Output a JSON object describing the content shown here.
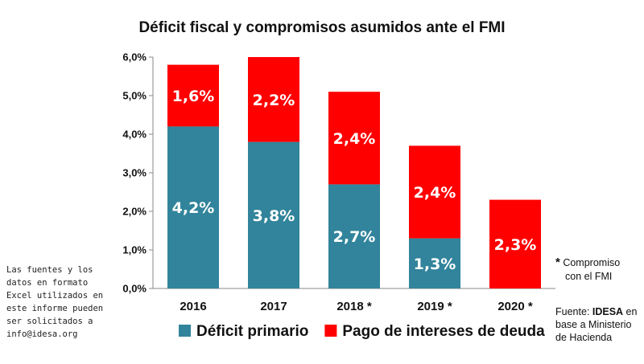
{
  "chart_data": {
    "type": "bar",
    "stacked": true,
    "title": "Déficit fiscal y compromisos asumidos ante el FMI",
    "categories": [
      "2016",
      "2017",
      "2018 *",
      "2019 *",
      "2020 *"
    ],
    "series": [
      {
        "name": "Déficit primario",
        "color": "#31849b",
        "values": [
          4.2,
          3.8,
          2.7,
          1.3,
          0
        ],
        "labels": [
          "4,2%",
          "3,8%",
          "2,7%",
          "1,3%",
          ""
        ]
      },
      {
        "name": "Pago de intereses de deuda",
        "color": "#ff0000",
        "values": [
          1.6,
          2.2,
          2.4,
          2.4,
          2.3
        ],
        "labels": [
          "1,6%",
          "2,2%",
          "2,4%",
          "2,4%",
          "2,3%"
        ]
      }
    ],
    "ylim": [
      0,
      6
    ],
    "yticks": [
      0,
      1,
      2,
      3,
      4,
      5,
      6
    ],
    "ytick_labels": [
      "0,0%",
      "1,0%",
      "2,0%",
      "3,0%",
      "4,0%",
      "5,0%",
      "6,0%"
    ],
    "grid": false,
    "legend_position": "bottom"
  },
  "notes": {
    "left_lines": [
      "Las fuentes y los",
      "datos en formato",
      "Excel utilizados en",
      "este informe pueden",
      "ser solicitados a",
      "info@idesa.org"
    ],
    "star": "*",
    "commitment_line1": "Compromiso",
    "commitment_line2": "con el FMI",
    "source_prefix": "Fuente: ",
    "source_org": "IDESA",
    "source_suffix": " en base a Ministerio de Hacienda"
  }
}
